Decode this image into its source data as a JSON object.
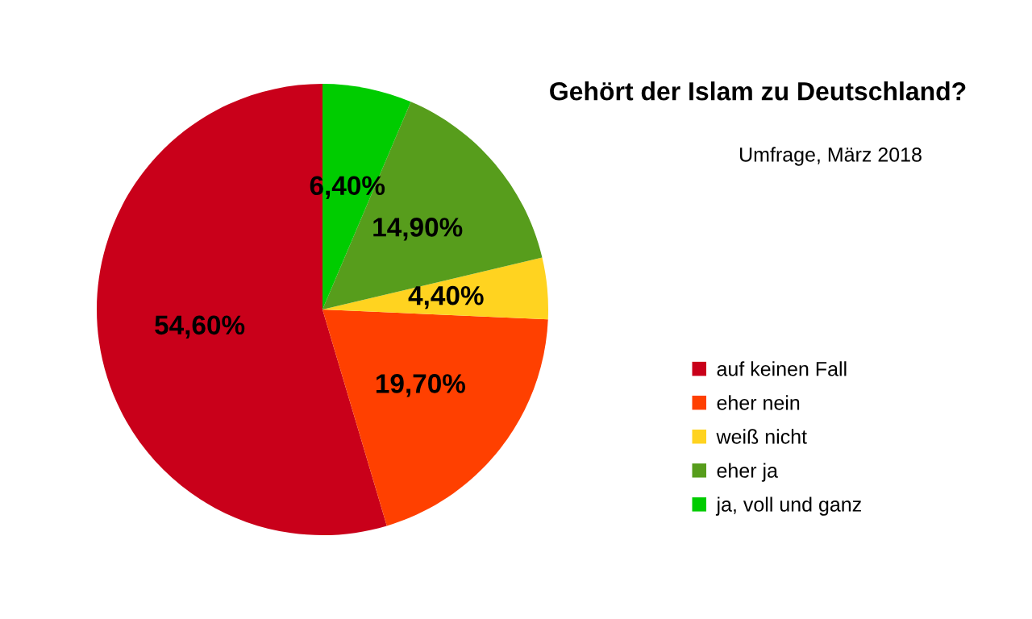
{
  "chart_data": {
    "type": "pie",
    "title": "Gehört der Islam zu Deutschland?",
    "subtitle": "Umfrage, März 2018",
    "categories": [
      "auf keinen Fall",
      "eher nein",
      "weiß nicht",
      "eher ja",
      "ja, voll und ganz"
    ],
    "values": [
      54.6,
      19.7,
      4.4,
      14.9,
      6.4
    ],
    "value_labels": [
      "54,60%",
      "19,70%",
      "4,40%",
      "14,90%",
      "6,40%"
    ],
    "colors": [
      "#c9001a",
      "#ff4000",
      "#ffd320",
      "#579d1c",
      "#00cc00"
    ],
    "legend": "right"
  }
}
